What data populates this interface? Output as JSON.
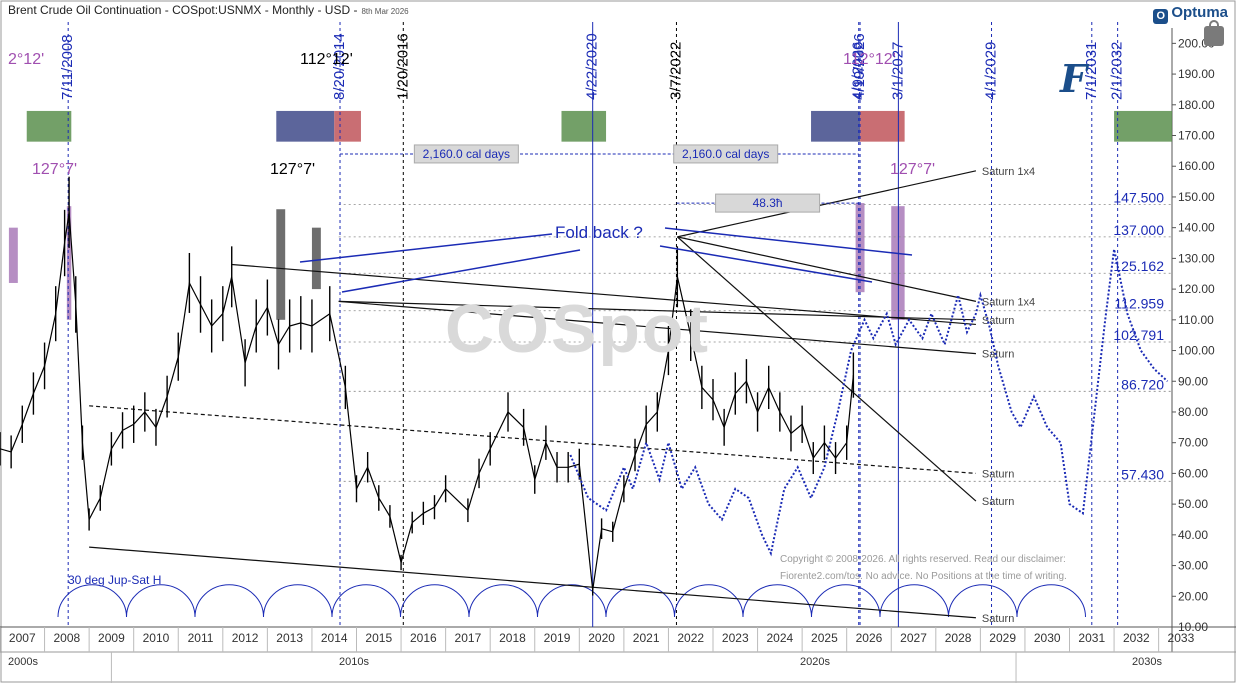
{
  "header": {
    "title": "Brent Crude Oil Continuation - COSpot:USNMX - Monthly - USD -",
    "date": "8th Mar 2026",
    "brand": "Optuma",
    "brand_mark": "O"
  },
  "watermark": "COSpot",
  "logo_letter": "F",
  "copyright_lines": [
    "Copyright © 2008-2026. All rights reserved. Read our disclaimer:",
    "Fiorente2.com/tos. No advice. No Positions at the time of writing."
  ],
  "decades": [
    "2000s",
    "2010s",
    "2020s",
    "2030s"
  ],
  "chart_data": {
    "type": "line",
    "title": "Brent Crude Oil Continuation - COSpot:USNMX - Monthly - USD",
    "x_range": [
      2007.0,
      2033.3
    ],
    "ylim": [
      10,
      205
    ],
    "y_ticks": [
      10,
      20,
      30,
      40,
      50,
      60,
      70,
      80,
      90,
      100,
      110,
      120,
      130,
      140,
      150,
      160,
      170,
      180,
      190,
      200
    ],
    "x_ticks": [
      "2007",
      "2008",
      "2009",
      "2010",
      "2011",
      "2012",
      "2013",
      "2014",
      "2015",
      "2016",
      "2017",
      "2018",
      "2019",
      "2020",
      "2021",
      "2022",
      "2023",
      "2024",
      "2025",
      "2026",
      "2027",
      "2028",
      "2029",
      "2030",
      "2031",
      "2032",
      "2033"
    ],
    "series": [
      {
        "type": "price_bars",
        "points": [
          [
            2007.0,
            68
          ],
          [
            2007.25,
            67
          ],
          [
            2007.5,
            76
          ],
          [
            2007.75,
            86
          ],
          [
            2008.0,
            95
          ],
          [
            2008.25,
            112
          ],
          [
            2008.45,
            135
          ],
          [
            2008.55,
            145
          ],
          [
            2008.7,
            115
          ],
          [
            2008.85,
            70
          ],
          [
            2009.0,
            45
          ],
          [
            2009.25,
            52
          ],
          [
            2009.5,
            68
          ],
          [
            2009.75,
            74
          ],
          [
            2010.0,
            76
          ],
          [
            2010.25,
            80
          ],
          [
            2010.5,
            75
          ],
          [
            2010.75,
            85
          ],
          [
            2011.0,
            98
          ],
          [
            2011.25,
            122
          ],
          [
            2011.5,
            115
          ],
          [
            2011.75,
            108
          ],
          [
            2012.0,
            112
          ],
          [
            2012.2,
            124
          ],
          [
            2012.5,
            96
          ],
          [
            2012.75,
            108
          ],
          [
            2013.0,
            114
          ],
          [
            2013.25,
            102
          ],
          [
            2013.5,
            108
          ],
          [
            2013.75,
            109
          ],
          [
            2014.0,
            108
          ],
          [
            2014.4,
            112
          ],
          [
            2014.75,
            88
          ],
          [
            2015.0,
            55
          ],
          [
            2015.25,
            62
          ],
          [
            2015.5,
            52
          ],
          [
            2015.75,
            46
          ],
          [
            2016.0,
            31
          ],
          [
            2016.25,
            44
          ],
          [
            2016.5,
            47
          ],
          [
            2016.75,
            49
          ],
          [
            2017.0,
            55
          ],
          [
            2017.5,
            48
          ],
          [
            2017.75,
            60
          ],
          [
            2018.0,
            68
          ],
          [
            2018.4,
            80
          ],
          [
            2018.75,
            75
          ],
          [
            2019.0,
            58
          ],
          [
            2019.25,
            70
          ],
          [
            2019.5,
            62
          ],
          [
            2019.75,
            62
          ],
          [
            2020.0,
            63
          ],
          [
            2020.3,
            22
          ],
          [
            2020.5,
            42
          ],
          [
            2020.75,
            41
          ],
          [
            2021.0,
            55
          ],
          [
            2021.25,
            66
          ],
          [
            2021.5,
            76
          ],
          [
            2021.75,
            80
          ],
          [
            2022.0,
            100
          ],
          [
            2022.2,
            124
          ],
          [
            2022.5,
            105
          ],
          [
            2022.75,
            88
          ],
          [
            2023.0,
            84
          ],
          [
            2023.25,
            75
          ],
          [
            2023.5,
            86
          ],
          [
            2023.75,
            90
          ],
          [
            2024.0,
            80
          ],
          [
            2024.25,
            88
          ],
          [
            2024.5,
            80
          ],
          [
            2024.75,
            73
          ],
          [
            2025.0,
            76
          ],
          [
            2025.25,
            65
          ],
          [
            2025.5,
            70
          ],
          [
            2025.75,
            65
          ],
          [
            2026.0,
            70
          ],
          [
            2026.15,
            92
          ]
        ]
      },
      {
        "type": "dotted_projection",
        "points": [
          [
            2019.8,
            66
          ],
          [
            2020.2,
            52
          ],
          [
            2020.6,
            48
          ],
          [
            2021.0,
            62
          ],
          [
            2021.2,
            55
          ],
          [
            2021.5,
            70
          ],
          [
            2021.8,
            58
          ],
          [
            2022.0,
            70
          ],
          [
            2022.3,
            55
          ],
          [
            2022.6,
            62
          ],
          [
            2022.9,
            50
          ],
          [
            2023.2,
            45
          ],
          [
            2023.5,
            55
          ],
          [
            2023.8,
            52
          ],
          [
            2024.1,
            40
          ],
          [
            2024.3,
            34
          ],
          [
            2024.6,
            55
          ],
          [
            2024.9,
            62
          ],
          [
            2025.2,
            52
          ],
          [
            2025.5,
            62
          ],
          [
            2025.8,
            80
          ],
          [
            2026.1,
            100
          ],
          [
            2026.4,
            110
          ],
          [
            2026.6,
            104
          ],
          [
            2026.9,
            112
          ],
          [
            2027.1,
            102
          ],
          [
            2027.4,
            110
          ],
          [
            2027.7,
            104
          ],
          [
            2027.9,
            112
          ],
          [
            2028.2,
            102
          ],
          [
            2028.5,
            118
          ],
          [
            2028.7,
            106
          ],
          [
            2028.9,
            112
          ],
          [
            2029.0,
            118
          ],
          [
            2029.2,
            108
          ],
          [
            2029.4,
            95
          ],
          [
            2029.7,
            80
          ],
          [
            2029.9,
            75
          ],
          [
            2030.2,
            85
          ],
          [
            2030.5,
            75
          ],
          [
            2030.8,
            70
          ],
          [
            2031.0,
            50
          ],
          [
            2031.3,
            47
          ],
          [
            2031.5,
            72
          ],
          [
            2031.8,
            110
          ],
          [
            2032.0,
            133
          ],
          [
            2032.3,
            112
          ],
          [
            2032.6,
            100
          ],
          [
            2032.9,
            94
          ],
          [
            2033.2,
            90
          ]
        ]
      }
    ],
    "vertical_lines": [
      {
        "label": "7/11/2008",
        "x": 2008.53,
        "color": "#1b2bb5",
        "style": "dashed"
      },
      {
        "label": "8/20/2014",
        "x": 2014.63,
        "color": "#1b2bb5",
        "style": "dashed"
      },
      {
        "label": "1/20/2016",
        "x": 2016.05,
        "color": "#000000",
        "style": "dashed"
      },
      {
        "label": "4/22/2020",
        "x": 2020.3,
        "color": "#1b2bb5",
        "style": "solid"
      },
      {
        "label": "3/7/2022",
        "x": 2022.18,
        "color": "#000000",
        "style": "dashed"
      },
      {
        "label": "4/9/2026",
        "x": 2026.27,
        "color": "#1b2bb5",
        "style": "dashed"
      },
      {
        "label": "4/19/2026",
        "x": 2026.3,
        "color": "#1b2bb5",
        "style": "dashed"
      },
      {
        "label": "3/1/2027",
        "x": 2027.16,
        "color": "#1b2bb5",
        "style": "solid"
      },
      {
        "label": "4/1/2029",
        "x": 2029.25,
        "color": "#1b2bb5",
        "style": "dashed"
      },
      {
        "label": "7/1/2031",
        "x": 2031.5,
        "color": "#1b2bb5",
        "style": "dashed"
      },
      {
        "label": "2/1/2032",
        "x": 2032.08,
        "color": "#1b2bb5",
        "style": "dashed"
      }
    ],
    "price_levels": [
      {
        "label": "147.500",
        "value": 147.5
      },
      {
        "label": "137.000",
        "value": 137.0
      },
      {
        "label": "125.162",
        "value": 125.162
      },
      {
        "label": "112.959",
        "value": 112.959
      },
      {
        "label": "102.791",
        "value": 102.791
      },
      {
        "label": "86.720",
        "value": 86.72
      },
      {
        "label": "57.430",
        "value": 57.43
      }
    ],
    "trend_lines": [
      {
        "label": "",
        "from": [
          2012.2,
          128
        ],
        "to": [
          2028.9,
          108.5
        ],
        "style": "solid"
      },
      {
        "label": "Saturn",
        "from": [
          2014.6,
          116
        ],
        "to": [
          2028.9,
          110
        ],
        "style": "solid"
      },
      {
        "label": "Saturn",
        "from": [
          2014.6,
          116
        ],
        "to": [
          2028.9,
          99
        ],
        "style": "solid"
      },
      {
        "label": "Saturn",
        "from": [
          2009.0,
          82
        ],
        "to": [
          2028.9,
          60
        ],
        "style": "dashed"
      },
      {
        "label": "Saturn",
        "from": [
          2009.0,
          36
        ],
        "to": [
          2028.9,
          13
        ],
        "style": "solid"
      },
      {
        "label": "Saturn 1x4",
        "from": [
          2022.2,
          137
        ],
        "to": [
          2028.9,
          158.5
        ],
        "style": "solid"
      },
      {
        "label": "Saturn 1x4",
        "from": [
          2022.2,
          137
        ],
        "to": [
          2028.9,
          116
        ],
        "style": "solid"
      },
      {
        "label": "Saturn",
        "from": [
          2022.2,
          137
        ],
        "to": [
          2028.9,
          51
        ],
        "style": "solid"
      }
    ],
    "horizontal_markers": [
      {
        "label": "2,160.0 cal days",
        "from": 2014.63,
        "to": 2020.3,
        "y": 164
      },
      {
        "label": "2,160.0 cal days",
        "from": 2020.3,
        "to": 2026.27,
        "y": 164
      },
      {
        "label": "48.3ħ",
        "from": 2022.18,
        "to": 2026.27,
        "y": 148
      }
    ],
    "annotations": [
      {
        "text": "Fold back ?",
        "color": "#1b2bb5"
      },
      {
        "text": "30 deg Jup-Sat H",
        "color": "#1b2bb5"
      },
      {
        "text": "112°12'",
        "color": "#000000"
      },
      {
        "text": "127°7'",
        "color": "#000000"
      },
      {
        "text": "112°12'",
        "color": "#a04fb0"
      },
      {
        "text": "127°7'",
        "color": "#a04fb0"
      },
      {
        "text": "2°12'",
        "color": "#a04fb0"
      },
      {
        "text": "127°7'",
        "color": "#a04fb0"
      }
    ],
    "colors": {
      "price": "#000000",
      "projection": "#1b2bb5",
      "vline_blue": "#1b2bb5",
      "zone_green": "#5a8f4e",
      "zone_navy": "#3f4a8a",
      "zone_red": "#c0555a",
      "bar_purple": "#a97ab8",
      "bar_dark": "#555555"
    },
    "grid": false,
    "y_axis_side": "right"
  }
}
